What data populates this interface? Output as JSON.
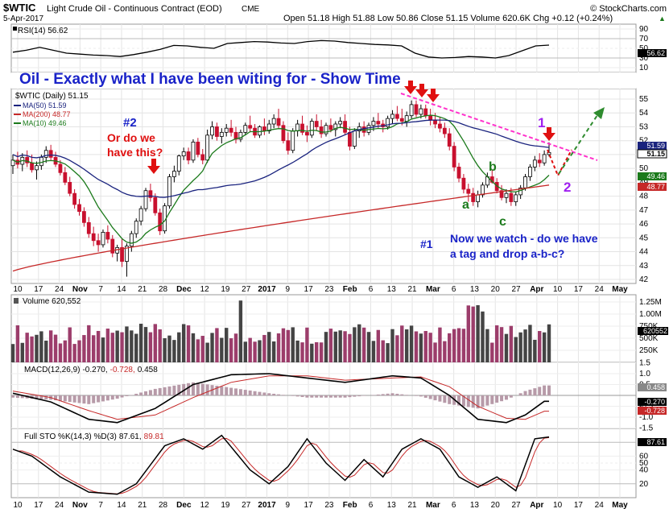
{
  "header": {
    "symbol": "$WTIC",
    "name": "Light Crude Oil - Continuous Contract (EOD)",
    "exchange": "CME",
    "copyright": "© StockCharts.com",
    "date": "5-Apr-2017",
    "quote": "Open 51.18  High 51.88  Low 50.86  Close 51.15  Volume 620.6K  Chg +0.12 (+0.24%)",
    "quote_arrow": "▲"
  },
  "rsi": {
    "legend": "RSI(14) 56.62",
    "ticks": [
      "90",
      "70",
      "50",
      "30",
      "10"
    ],
    "value_label": "56.62",
    "values": [
      42,
      46,
      52,
      46,
      40,
      38,
      36,
      35,
      33,
      37,
      42,
      48,
      56,
      55,
      52,
      50,
      60,
      62,
      64,
      63,
      61,
      60,
      64,
      66,
      65,
      62,
      60,
      58,
      57,
      55,
      40,
      32,
      30,
      31,
      33,
      32,
      30,
      35,
      45,
      55,
      56.62
    ]
  },
  "annotations": {
    "title": "Oil - Exactly what I have been witing for - Show Time",
    "label_2": "#2",
    "question": [
      "Or do we",
      "have this?"
    ],
    "label_1": "#1",
    "watch": [
      "Now we watch - do we have",
      "a tag and drop a-b-c?"
    ],
    "wave_a": "a",
    "wave_b": "b",
    "wave_c": "c",
    "wave_1": "1",
    "wave_2": "2"
  },
  "price": {
    "legend_symbol": "$WTIC (Daily) 51.15",
    "ma50": "MA(50) 51.59",
    "ma200": "MA(200) 48.77",
    "ma10": "MA(10) 49.46",
    "ticks": [
      "55",
      "54",
      "53",
      "52",
      "51",
      "50",
      "49",
      "48",
      "47",
      "46",
      "45",
      "44",
      "43",
      "42"
    ],
    "tags": {
      "ma50": "51.59",
      "close": "51.15",
      "ma10": "49.46",
      "ma200": "48.77"
    }
  },
  "volume": {
    "legend": "Volume 620,552",
    "ticks": [
      "1.25M",
      "1.00M",
      "750K",
      "500K",
      "250K"
    ],
    "tag": "620552"
  },
  "macd": {
    "legend_label": "MACD(12,26,9)",
    "legend_values": [
      "-0.270,",
      "-0.728,",
      "0.458"
    ],
    "ticks": [
      "1.5",
      "1.0",
      "0.5",
      "-0.5",
      "-1.0",
      "-1.5"
    ],
    "tags": {
      "hist": "0.458",
      "macd": "-0.270",
      "signal": "-0.728"
    }
  },
  "sto": {
    "legend_label": "Full STO %K(14,3) %D(3)",
    "legend_values": [
      "87.61,",
      "89.81"
    ],
    "ticks": [
      "80",
      "60",
      "50",
      "40",
      "20"
    ],
    "tag": "87.61"
  },
  "xaxis": {
    "labels": [
      "10",
      "17",
      "24",
      "Nov",
      "7",
      "14",
      "21",
      "28",
      "Dec",
      "12",
      "19",
      "27",
      "2017",
      "9",
      "17",
      "23",
      "Feb",
      "6",
      "13",
      "21",
      "Mar",
      "6",
      "13",
      "20",
      "27",
      "Apr",
      "10",
      "17",
      "24",
      "May"
    ]
  },
  "colors": {
    "up": "#ffffff",
    "down": "#c8102e",
    "ma50": "#1a237e",
    "ma200": "#c62828",
    "ma10": "#1b7a1b",
    "text_blue": "#1a23c8",
    "text_red": "#e01010",
    "trend": "#ff33cc",
    "wave_green": "#1b7a1b",
    "wave_purple": "#a020f0"
  },
  "chart_data": {
    "type": "candlestick",
    "title": "$WTIC Light Crude Oil - Continuous Contract (EOD)",
    "ylabel": "",
    "ylim": [
      42,
      56
    ],
    "ohlc": [
      [
        50.2,
        51.0,
        49.6,
        50.6
      ],
      [
        50.6,
        51.2,
        50.0,
        50.3
      ],
      [
        50.3,
        51.1,
        49.8,
        50.8
      ],
      [
        50.8,
        51.3,
        50.1,
        50.4
      ],
      [
        50.4,
        51.0,
        49.7,
        49.9
      ],
      [
        49.9,
        50.5,
        49.2,
        50.2
      ],
      [
        50.2,
        51.0,
        49.9,
        50.8
      ],
      [
        50.8,
        51.6,
        50.4,
        51.3
      ],
      [
        51.3,
        51.7,
        50.6,
        50.8
      ],
      [
        50.8,
        51.2,
        50.1,
        50.3
      ],
      [
        50.3,
        50.6,
        49.5,
        49.7
      ],
      [
        49.7,
        50.1,
        48.8,
        49.0
      ],
      [
        49.0,
        49.4,
        48.0,
        48.2
      ],
      [
        48.2,
        48.5,
        47.1,
        47.4
      ],
      [
        47.4,
        47.8,
        46.6,
        46.9
      ],
      [
        46.9,
        47.2,
        45.8,
        46.1
      ],
      [
        46.1,
        46.5,
        45.0,
        45.3
      ],
      [
        45.3,
        45.8,
        44.4,
        44.8
      ],
      [
        44.8,
        45.3,
        44.0,
        44.5
      ],
      [
        44.5,
        45.6,
        44.3,
        45.4
      ],
      [
        45.4,
        45.9,
        44.6,
        44.9
      ],
      [
        44.9,
        45.2,
        43.6,
        43.9
      ],
      [
        43.9,
        44.5,
        43.3,
        44.3
      ],
      [
        44.3,
        44.9,
        42.9,
        43.3
      ],
      [
        43.3,
        44.6,
        42.2,
        44.4
      ],
      [
        44.4,
        45.5,
        44.0,
        45.3
      ],
      [
        45.3,
        46.4,
        45.0,
        46.2
      ],
      [
        46.2,
        47.3,
        45.9,
        47.1
      ],
      [
        47.1,
        48.6,
        46.9,
        48.4
      ],
      [
        48.4,
        48.9,
        47.6,
        47.9
      ],
      [
        47.9,
        48.2,
        46.6,
        46.8
      ],
      [
        46.8,
        47.1,
        45.2,
        45.5
      ],
      [
        45.5,
        47.5,
        45.3,
        47.3
      ],
      [
        47.3,
        49.6,
        47.1,
        49.4
      ],
      [
        49.4,
        50.2,
        49.0,
        49.8
      ],
      [
        49.8,
        51.0,
        49.5,
        50.9
      ],
      [
        50.9,
        51.5,
        50.6,
        51.2
      ],
      [
        51.2,
        51.5,
        50.3,
        50.6
      ],
      [
        50.6,
        52.1,
        50.4,
        51.9
      ],
      [
        51.9,
        52.2,
        50.8,
        51.0
      ],
      [
        51.0,
        51.4,
        50.3,
        50.6
      ],
      [
        50.6,
        52.8,
        50.4,
        52.4
      ],
      [
        52.4,
        53.4,
        52.1,
        53.0
      ],
      [
        53.0,
        53.3,
        52.0,
        52.3
      ],
      [
        52.3,
        52.9,
        51.8,
        52.6
      ],
      [
        52.6,
        53.2,
        52.3,
        52.9
      ],
      [
        52.9,
        53.5,
        52.3,
        52.6
      ],
      [
        52.6,
        53.0,
        51.8,
        52.1
      ],
      [
        52.1,
        52.8,
        51.9,
        52.6
      ],
      [
        52.6,
        53.3,
        52.4,
        53.1
      ],
      [
        53.1,
        53.8,
        52.6,
        52.9
      ],
      [
        52.9,
        53.2,
        52.2,
        52.4
      ],
      [
        52.4,
        53.1,
        52.2,
        53.0
      ],
      [
        53.0,
        53.6,
        52.4,
        52.7
      ],
      [
        52.7,
        53.5,
        52.5,
        53.2
      ],
      [
        53.2,
        53.9,
        52.9,
        53.6
      ],
      [
        53.6,
        54.3,
        52.9,
        53.1
      ],
      [
        53.1,
        53.4,
        51.8,
        52.0
      ],
      [
        52.0,
        52.6,
        51.0,
        51.3
      ],
      [
        51.3,
        52.9,
        51.1,
        52.7
      ],
      [
        52.7,
        53.5,
        52.3,
        53.2
      ],
      [
        53.2,
        53.8,
        52.4,
        52.6
      ],
      [
        52.6,
        53.1,
        51.9,
        52.4
      ],
      [
        52.4,
        53.6,
        52.2,
        53.4
      ],
      [
        53.4,
        53.9,
        52.7,
        53.0
      ],
      [
        53.0,
        53.5,
        52.2,
        52.5
      ],
      [
        52.5,
        53.3,
        52.3,
        53.1
      ],
      [
        53.1,
        53.6,
        52.6,
        52.8
      ],
      [
        52.8,
        53.4,
        52.3,
        53.2
      ],
      [
        53.2,
        53.7,
        52.9,
        53.4
      ],
      [
        53.4,
        53.9,
        52.4,
        52.6
      ],
      [
        52.6,
        53.0,
        51.3,
        51.6
      ],
      [
        51.6,
        52.9,
        51.4,
        52.7
      ],
      [
        52.7,
        53.3,
        52.2,
        53.0
      ],
      [
        53.0,
        53.4,
        52.3,
        52.6
      ],
      [
        52.6,
        53.3,
        52.4,
        53.1
      ],
      [
        53.1,
        53.7,
        52.7,
        53.4
      ],
      [
        53.4,
        54.0,
        52.9,
        53.2
      ],
      [
        53.2,
        53.5,
        52.6,
        53.0
      ],
      [
        53.0,
        53.8,
        52.8,
        53.6
      ],
      [
        53.6,
        54.2,
        53.2,
        53.9
      ],
      [
        53.9,
        54.5,
        53.4,
        53.6
      ],
      [
        53.6,
        54.3,
        53.1,
        53.4
      ],
      [
        53.4,
        54.1,
        53.0,
        53.8
      ],
      [
        53.8,
        54.9,
        53.6,
        54.6
      ],
      [
        54.6,
        54.9,
        53.7,
        53.9
      ],
      [
        53.9,
        54.6,
        53.6,
        54.3
      ],
      [
        54.3,
        54.6,
        53.6,
        53.8
      ],
      [
        53.8,
        54.3,
        53.1,
        53.5
      ],
      [
        53.5,
        54.0,
        52.9,
        53.2
      ],
      [
        53.2,
        53.7,
        52.6,
        52.9
      ],
      [
        52.9,
        53.3,
        52.2,
        52.5
      ],
      [
        52.5,
        52.9,
        51.3,
        51.6
      ],
      [
        51.6,
        51.9,
        49.8,
        50.1
      ],
      [
        50.1,
        50.4,
        49.0,
        49.3
      ],
      [
        49.3,
        49.6,
        48.2,
        48.5
      ],
      [
        48.5,
        48.9,
        47.6,
        48.2
      ],
      [
        48.2,
        48.6,
        47.3,
        47.6
      ],
      [
        47.6,
        48.4,
        47.2,
        48.1
      ],
      [
        48.1,
        49.0,
        47.9,
        48.8
      ],
      [
        48.8,
        49.7,
        48.6,
        49.4
      ],
      [
        49.4,
        49.9,
        48.9,
        49.0
      ],
      [
        49.0,
        49.3,
        48.2,
        48.4
      ],
      [
        48.4,
        48.8,
        47.7,
        47.9
      ],
      [
        47.9,
        48.5,
        47.5,
        48.2
      ],
      [
        48.2,
        48.6,
        47.3,
        47.6
      ],
      [
        47.6,
        48.3,
        47.3,
        48.1
      ],
      [
        48.1,
        48.8,
        47.8,
        48.6
      ],
      [
        48.6,
        49.6,
        48.4,
        49.4
      ],
      [
        49.4,
        50.3,
        49.1,
        50.1
      ],
      [
        50.1,
        50.9,
        49.8,
        50.6
      ],
      [
        50.6,
        51.1,
        50.1,
        50.4
      ],
      [
        50.4,
        51.3,
        50.2,
        51.0
      ],
      [
        51.0,
        51.88,
        50.86,
        51.15
      ]
    ],
    "series": [
      {
        "name": "MA(50)",
        "values_last": 51.59
      },
      {
        "name": "MA(200)",
        "values_last": 48.77
      },
      {
        "name": "MA(10)",
        "values_last": 49.46
      }
    ],
    "panels": [
      {
        "name": "RSI(14)",
        "last": 56.62,
        "ylim": [
          0,
          100
        ]
      },
      {
        "name": "Volume",
        "last": 620552
      },
      {
        "name": "MACD(12,26,9)",
        "macd": -0.27,
        "signal": -0.728,
        "histogram": 0.458
      },
      {
        "name": "Full STO %K(14,3) %D(3)",
        "k": 87.61,
        "d": 89.81
      }
    ]
  }
}
